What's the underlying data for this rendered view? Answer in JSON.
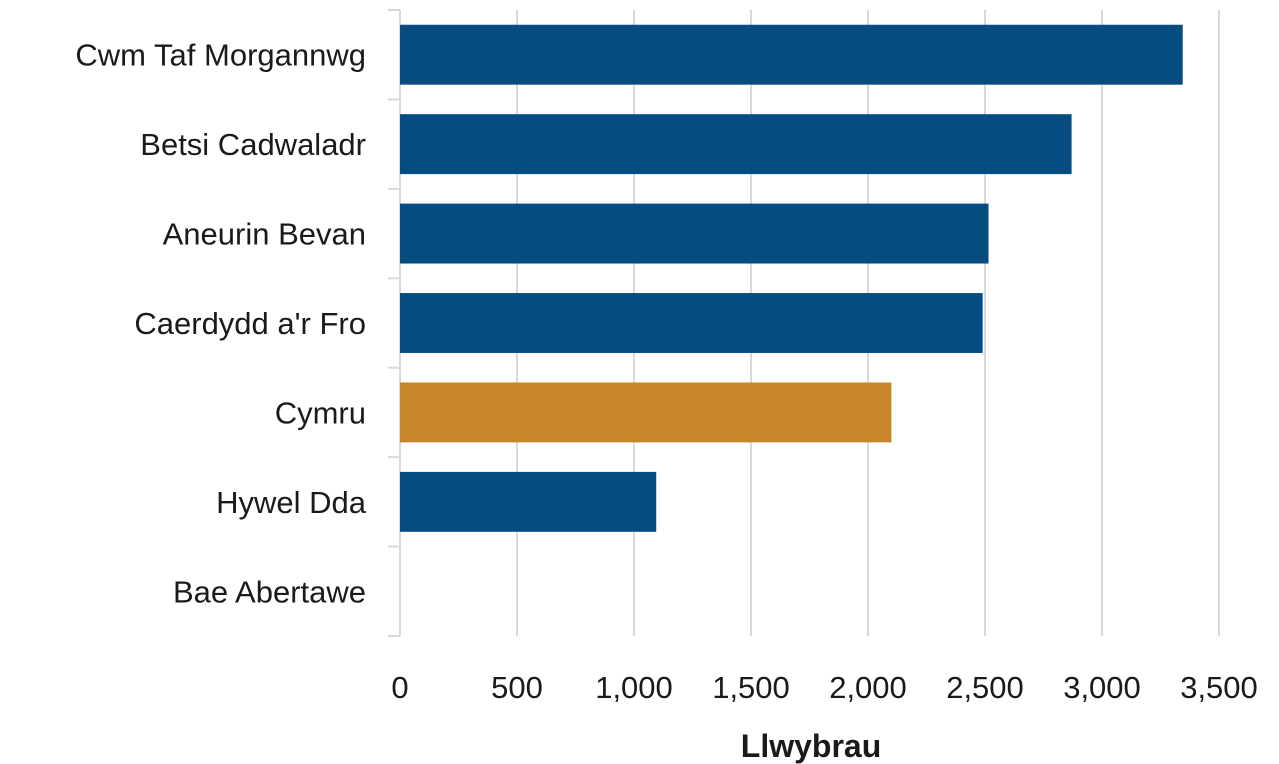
{
  "chart_data": {
    "type": "bar",
    "orientation": "horizontal",
    "categories": [
      "Cwm Taf Morgannwg",
      "Betsi Cadwaladr",
      "Aneurin Bevan",
      "Caerdydd a'r Fro",
      "Cymru",
      "Hywel Dda",
      "Bae Abertawe"
    ],
    "values": [
      3345,
      2870,
      2515,
      2490,
      2100,
      1095,
      0
    ],
    "highlight_category": "Cymru",
    "colors": {
      "bar": "#054d80",
      "highlight": "#c8862a",
      "grid": "#d9d9d9"
    },
    "xlim": [
      0,
      3500
    ],
    "xticks": [
      0,
      500,
      1000,
      1500,
      2000,
      2500,
      3000,
      3500
    ],
    "xtick_labels": [
      "0",
      "500",
      "1,000",
      "1,500",
      "2,000",
      "2,500",
      "3,000",
      "3,500"
    ],
    "xlabel": "Llwybrau",
    "ylabel": "",
    "grid": true,
    "legend": "none"
  }
}
